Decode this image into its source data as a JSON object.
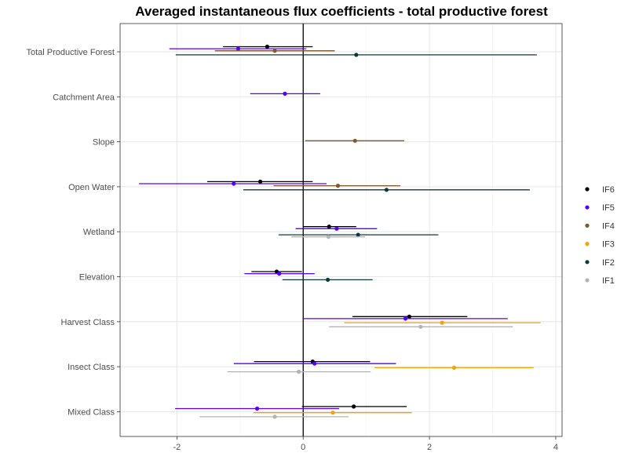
{
  "chart_data": {
    "type": "scatter",
    "subtype": "point-range (coefficient plot, horizontal error bars)",
    "title": "Averaged instantaneous flux coefficients - total productive forest",
    "xlabel": "",
    "ylabel": "",
    "xlim": [
      -2.9,
      4.1
    ],
    "x_ticks": [
      -2,
      0,
      2,
      4
    ],
    "x_tick_labels": [
      "-2",
      "0",
      "2",
      "4"
    ],
    "reference_line_x": 0,
    "grid": true,
    "legend_position": "right",
    "categories": [
      "Total Productive Forest",
      "Catchment Area",
      "Slope",
      "Open Water",
      "Wetland",
      "Elevation",
      "Harvest Class",
      "Insect Class",
      "Mixed Class"
    ],
    "series": [
      {
        "name": "IF6",
        "color": "#000000",
        "points": [
          {
            "category": "Total Productive Forest",
            "estimate": -0.57,
            "low": -1.27,
            "high": 0.15
          },
          {
            "category": "Open Water",
            "estimate": -0.68,
            "low": -1.52,
            "high": 0.15
          },
          {
            "category": "Wetland",
            "estimate": 0.41,
            "low": 0.0,
            "high": 0.84
          },
          {
            "category": "Elevation",
            "estimate": -0.42,
            "low": -0.82,
            "high": -0.02
          },
          {
            "category": "Harvest Class",
            "estimate": 1.68,
            "low": 0.78,
            "high": 2.6
          },
          {
            "category": "Insect Class",
            "estimate": 0.15,
            "low": -0.78,
            "high": 1.06
          },
          {
            "category": "Mixed Class",
            "estimate": 0.8,
            "low": -0.02,
            "high": 1.64
          }
        ]
      },
      {
        "name": "IF5",
        "color": "#5500ff",
        "points": [
          {
            "category": "Total Productive Forest",
            "estimate": -1.03,
            "low": -2.12,
            "high": 0.05
          },
          {
            "category": "Catchment Area",
            "estimate": -0.29,
            "low": -0.84,
            "high": 0.27
          },
          {
            "category": "Open Water",
            "estimate": -1.1,
            "low": -2.6,
            "high": 0.37
          },
          {
            "category": "Wetland",
            "estimate": 0.53,
            "low": -0.12,
            "high": 1.17
          },
          {
            "category": "Elevation",
            "estimate": -0.38,
            "low": -0.93,
            "high": 0.18
          },
          {
            "category": "Harvest Class",
            "estimate": 1.62,
            "low": 0.0,
            "high": 3.24
          },
          {
            "category": "Insect Class",
            "estimate": 0.18,
            "low": -1.1,
            "high": 1.47
          },
          {
            "category": "Mixed Class",
            "estimate": -0.73,
            "low": -2.03,
            "high": 0.57
          }
        ]
      },
      {
        "name": "IF4",
        "color": "#7f5a2a",
        "points": [
          {
            "category": "Total Productive Forest",
            "estimate": -0.45,
            "low": -1.4,
            "high": 0.5
          },
          {
            "category": "Slope",
            "estimate": 0.82,
            "low": 0.03,
            "high": 1.6
          },
          {
            "category": "Open Water",
            "estimate": 0.55,
            "low": -0.47,
            "high": 1.54
          }
        ]
      },
      {
        "name": "IF3",
        "color": "#f2a20c",
        "points": [
          {
            "category": "Harvest Class",
            "estimate": 2.2,
            "low": 0.65,
            "high": 3.76
          },
          {
            "category": "Insect Class",
            "estimate": 2.39,
            "low": 1.13,
            "high": 3.65
          },
          {
            "category": "Mixed Class",
            "estimate": 0.47,
            "low": -0.79,
            "high": 1.72
          }
        ]
      },
      {
        "name": "IF2",
        "color": "#0c3a3a",
        "points": [
          {
            "category": "Total Productive Forest",
            "estimate": 0.84,
            "low": -2.02,
            "high": 3.7
          },
          {
            "category": "Open Water",
            "estimate": 1.32,
            "low": -0.95,
            "high": 3.59
          },
          {
            "category": "Wetland",
            "estimate": 0.87,
            "low": -0.39,
            "high": 2.14
          },
          {
            "category": "Elevation",
            "estimate": 0.39,
            "low": -0.33,
            "high": 1.1
          }
        ]
      },
      {
        "name": "IF1",
        "color": "#b3b3b3",
        "points": [
          {
            "category": "Wetland",
            "estimate": 0.4,
            "low": -0.19,
            "high": 0.98
          },
          {
            "category": "Harvest Class",
            "estimate": 1.86,
            "low": 0.41,
            "high": 3.32
          },
          {
            "category": "Insect Class",
            "estimate": -0.07,
            "low": -1.2,
            "high": 1.07
          },
          {
            "category": "Mixed Class",
            "estimate": -0.45,
            "low": -1.64,
            "high": 0.72
          }
        ]
      }
    ],
    "legend_order": [
      "IF6",
      "IF5",
      "IF4",
      "IF3",
      "IF2",
      "IF1"
    ]
  }
}
